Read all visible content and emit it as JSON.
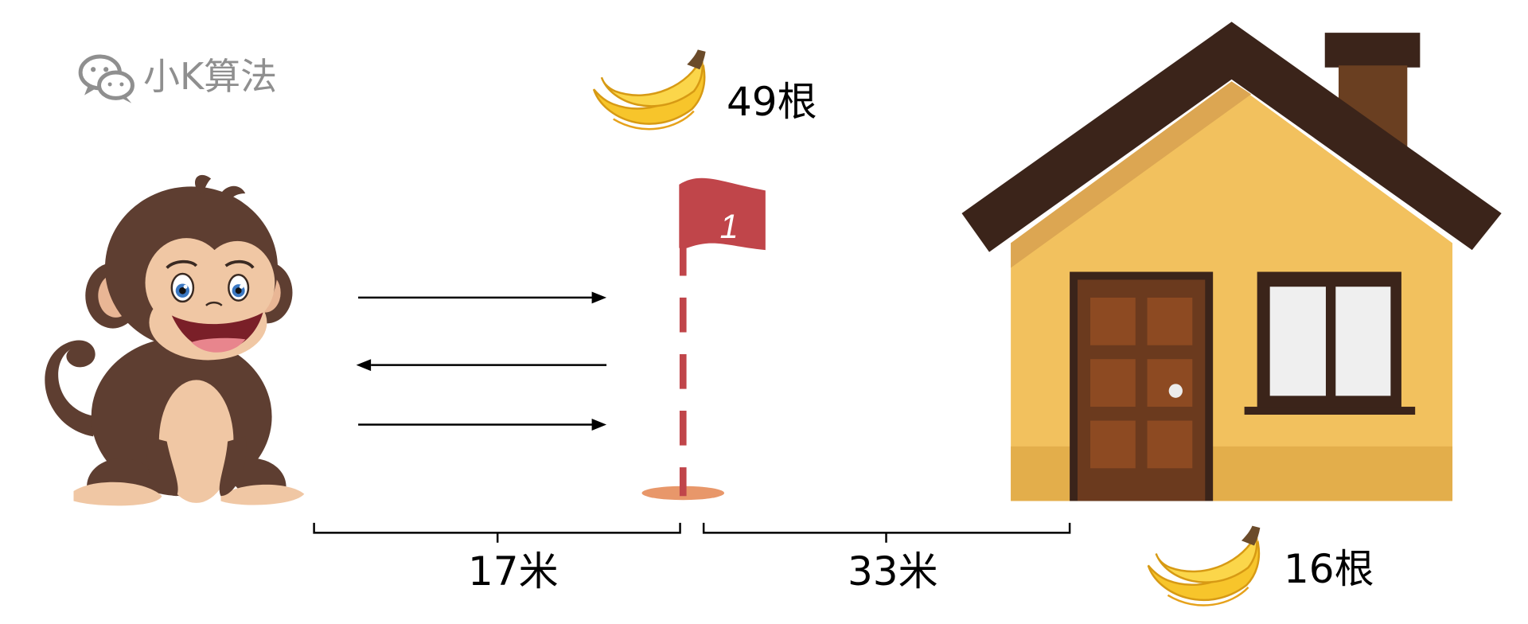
{
  "logo": {
    "text": "小K算法",
    "icon": "wechat-icon"
  },
  "items": {
    "flag_bananas": {
      "count_label": "49根",
      "icon": "banana-icon"
    },
    "home_bananas": {
      "count_label": "16根",
      "icon": "banana-icon"
    },
    "flag": {
      "number": "1"
    }
  },
  "distances": {
    "start_to_flag": "17米",
    "flag_to_home": "33米"
  },
  "colors": {
    "flag_red": "#c0454a",
    "house_wall": "#f2c15e",
    "roof_dark": "#3b241a",
    "door_brown": "#8d4a22",
    "monkey_brown": "#5e3e31",
    "banana_yellow": "#f7c52b"
  }
}
